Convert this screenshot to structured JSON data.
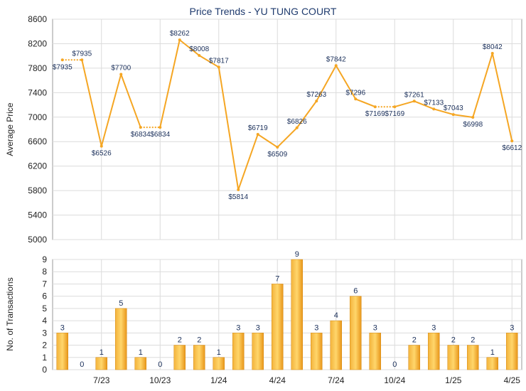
{
  "chart_data": [
    {
      "type": "line",
      "title": "Price Trends - YU TUNG COURT",
      "ylabel": "Average Price",
      "ylim": [
        5000,
        8600
      ],
      "yticks": [
        5000,
        5400,
        5800,
        6200,
        6600,
        7000,
        7400,
        7800,
        8200,
        8600
      ],
      "x_tick_labels": [
        "7/23",
        "10/23",
        "1/24",
        "4/24",
        "7/24",
        "10/24",
        "1/25",
        "4/25"
      ],
      "grid": true,
      "color": "#f5a623",
      "series": [
        {
          "values": [
            7935,
            7935,
            6526,
            7700,
            6834,
            6834,
            8262,
            8008,
            7817,
            5814,
            6719,
            6509,
            6826,
            7263,
            7842,
            7296,
            7169,
            7169,
            7261,
            7133,
            7043,
            6998,
            8042,
            6612
          ],
          "labels": [
            "$7935",
            "$7935",
            "$6526",
            "$7700",
            "$6834",
            "$6834",
            "$8262",
            "$8008",
            "$7817",
            "$5814",
            "$6719",
            "$6509",
            "$6826",
            "$7263",
            "$7842",
            "$7296",
            "$7169",
            "$7169",
            "$7261",
            "$7133",
            "$7043",
            "$6998",
            "$8042",
            "$6612"
          ],
          "carried": [
            false,
            true,
            false,
            false,
            false,
            true,
            false,
            false,
            false,
            false,
            false,
            false,
            false,
            false,
            false,
            false,
            false,
            true,
            false,
            false,
            false,
            false,
            false,
            false
          ]
        }
      ]
    },
    {
      "type": "bar",
      "ylabel": "No. of Transactions",
      "ylim": [
        0,
        9
      ],
      "yticks": [
        0,
        1,
        2,
        3,
        4,
        5,
        6,
        7,
        8,
        9
      ],
      "x_tick_labels": [
        "7/23",
        "10/23",
        "1/24",
        "4/24",
        "7/24",
        "10/24",
        "1/25",
        "4/25"
      ],
      "grid": true,
      "color": "#f0a020",
      "values": [
        3,
        0,
        1,
        5,
        1,
        0,
        2,
        2,
        1,
        3,
        3,
        7,
        9,
        3,
        4,
        6,
        3,
        0,
        2,
        3,
        2,
        2,
        1,
        3
      ]
    }
  ]
}
